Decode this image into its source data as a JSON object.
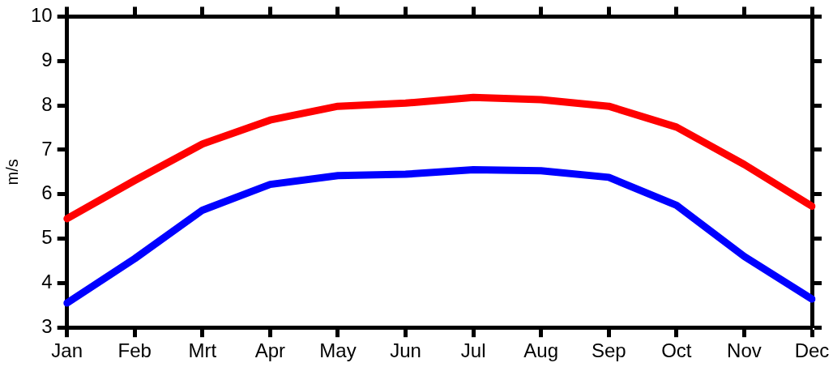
{
  "chart_data": {
    "type": "line",
    "ylabel": "m/s",
    "categories": [
      "Jan",
      "Feb",
      "Mrt",
      "Apr",
      "May",
      "Jun",
      "Jul",
      "Aug",
      "Sep",
      "Oct",
      "Nov",
      "Dec"
    ],
    "series": [
      {
        "color": "#ff0000",
        "values": [
          5.45,
          6.31,
          7.13,
          7.67,
          7.98,
          8.05,
          8.18,
          8.13,
          7.98,
          7.51,
          6.67,
          5.73
        ]
      },
      {
        "color": "#0000ff",
        "values": [
          3.55,
          4.55,
          5.64,
          6.22,
          6.42,
          6.45,
          6.55,
          6.53,
          6.38,
          5.75,
          4.6,
          3.64
        ]
      }
    ],
    "ylim": [
      3,
      10
    ],
    "yticks": [
      3,
      4,
      5,
      6,
      7,
      8,
      9,
      10
    ],
    "grid": false,
    "legend": false,
    "marker": "none",
    "line_style": "solid"
  }
}
